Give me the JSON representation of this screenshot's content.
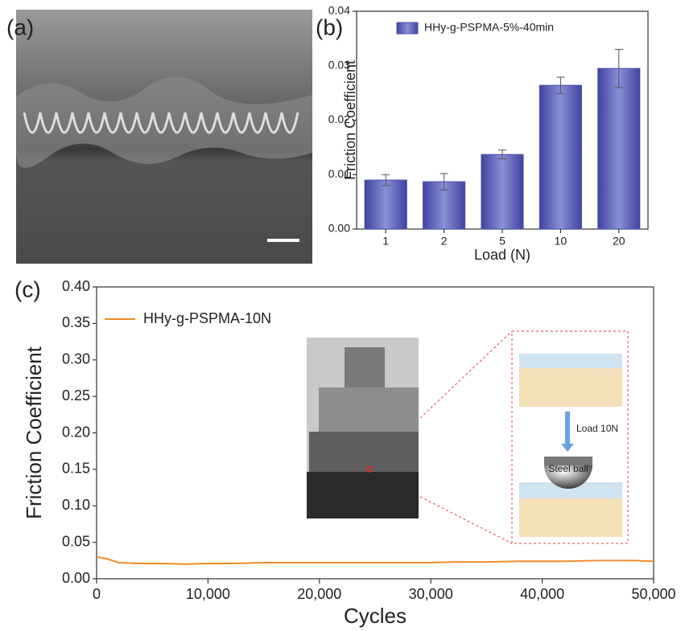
{
  "panel_labels": [
    "(a)",
    "(b)",
    "(c)"
  ],
  "inset": {
    "arrow_label": "Load 10N",
    "ball_label": "Steel ball"
  },
  "chart_data": [
    {
      "type": "bar",
      "categories": [
        "1",
        "2",
        "5",
        "10",
        "20"
      ],
      "series": [
        {
          "name": "HHy-g-PSPMA-5%-40min",
          "color": "#4a4fa8",
          "values": [
            0.009,
            0.0087,
            0.0137,
            0.0264,
            0.0295
          ],
          "errors": [
            0.001,
            0.0015,
            0.0008,
            0.0015,
            0.0035
          ]
        }
      ],
      "xlabel": "Load (N)",
      "ylabel": "Friction Coefficient",
      "ylim": [
        0,
        0.04
      ],
      "yticks": [
        {
          "value": 0,
          "label": "0.00"
        },
        {
          "value": 0.01,
          "label": "0.01"
        },
        {
          "value": 0.02,
          "label": "0.02"
        },
        {
          "value": 0.03,
          "label": "0.03"
        },
        {
          "value": 0.04,
          "label": "0.04"
        }
      ],
      "legend": "upper left"
    },
    {
      "type": "line",
      "x": [
        0,
        1000,
        2000,
        4000,
        6000,
        8000,
        10000,
        12000,
        15000,
        18000,
        20000,
        22000,
        25000,
        28000,
        30000,
        32000,
        35000,
        38000,
        40000,
        42000,
        45000,
        48000,
        50000
      ],
      "series": [
        {
          "name": "HHy-g-PSPMA-10N",
          "color": "#f08a2c",
          "values": [
            0.03,
            0.027,
            0.022,
            0.021,
            0.021,
            0.02,
            0.021,
            0.021,
            0.022,
            0.022,
            0.022,
            0.022,
            0.022,
            0.022,
            0.022,
            0.023,
            0.023,
            0.024,
            0.024,
            0.024,
            0.025,
            0.025,
            0.024
          ]
        }
      ],
      "xlabel": "Cycles",
      "ylabel": "Friction Coefficient",
      "xlim": [
        0,
        50000
      ],
      "xticks": [
        0,
        {
          "value": 10000,
          "label": "10,000"
        },
        {
          "value": 20000,
          "label": "20,000"
        },
        {
          "value": 30000,
          "label": "30,000"
        },
        {
          "value": 40000,
          "label": "40,000"
        },
        {
          "value": 50000,
          "label": "50,000"
        }
      ],
      "ylim": [
        0,
        0.4
      ],
      "yticks": [
        {
          "value": 0,
          "label": "0.00"
        },
        {
          "value": 0.05,
          "label": "0.05"
        },
        {
          "value": 0.1,
          "label": "0.10"
        },
        {
          "value": 0.15,
          "label": "0.15"
        },
        {
          "value": 0.2,
          "label": "0.20"
        },
        {
          "value": 0.25,
          "label": "0.25"
        },
        {
          "value": 0.3,
          "label": "0.30"
        },
        {
          "value": 0.35,
          "label": "0.35"
        },
        {
          "value": 0.4,
          "label": "0.40"
        }
      ],
      "legend": "upper left"
    }
  ]
}
